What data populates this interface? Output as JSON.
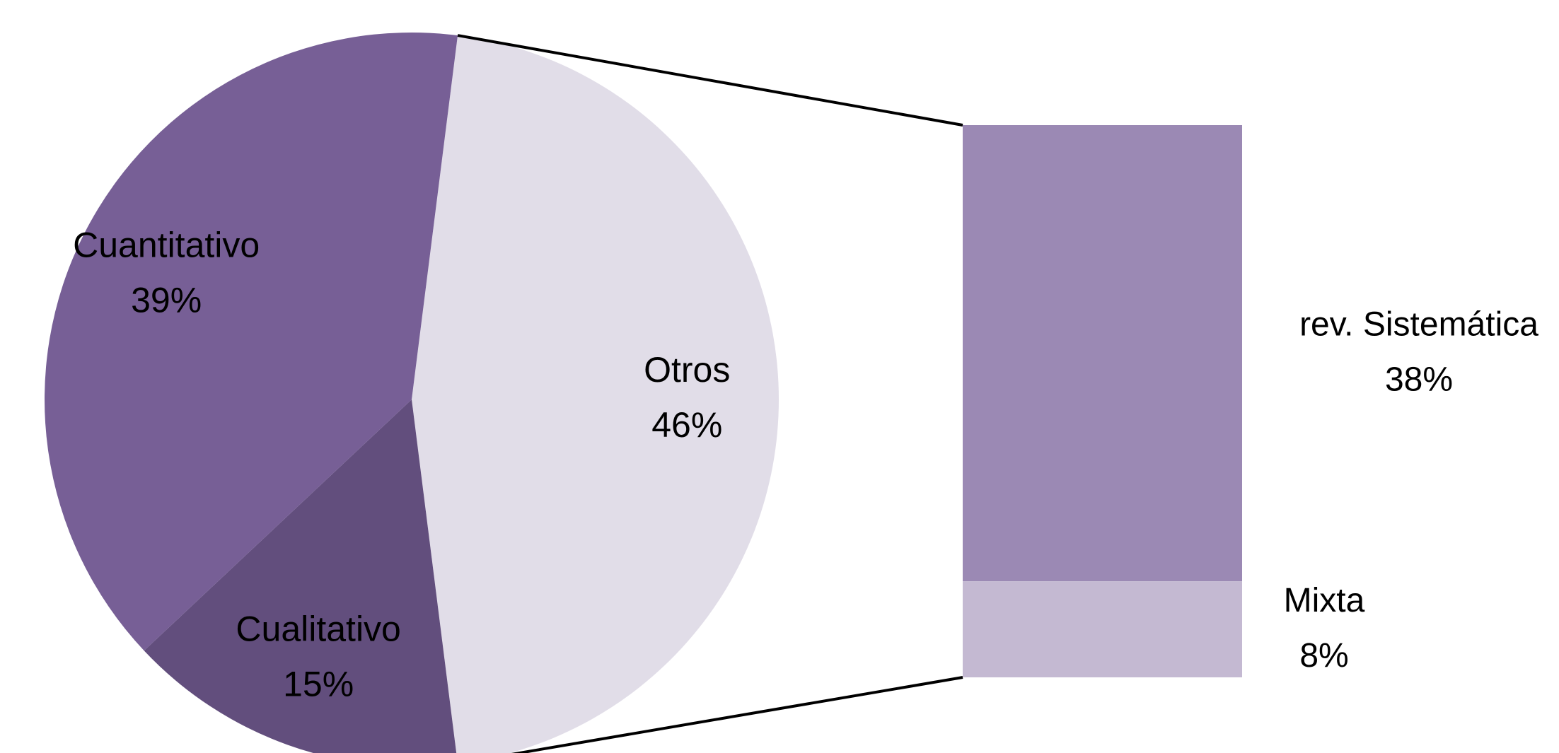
{
  "chart_data": [
    {
      "type": "pie",
      "categories": [
        "Otros",
        "Cualitativo",
        "Cuantitativo"
      ],
      "values": [
        46,
        15,
        39
      ],
      "value_labels": [
        "46%",
        "15%",
        "39%"
      ],
      "colors": [
        "#e1dde8",
        "#624e7d",
        "#775f96"
      ]
    },
    {
      "type": "bar",
      "categories": [
        "rev. Sistemática",
        "Mixta"
      ],
      "values": [
        38,
        8
      ],
      "value_labels": [
        "38%",
        "8%"
      ],
      "colors": [
        "#9b89b4",
        "#c4b9d2"
      ]
    }
  ]
}
